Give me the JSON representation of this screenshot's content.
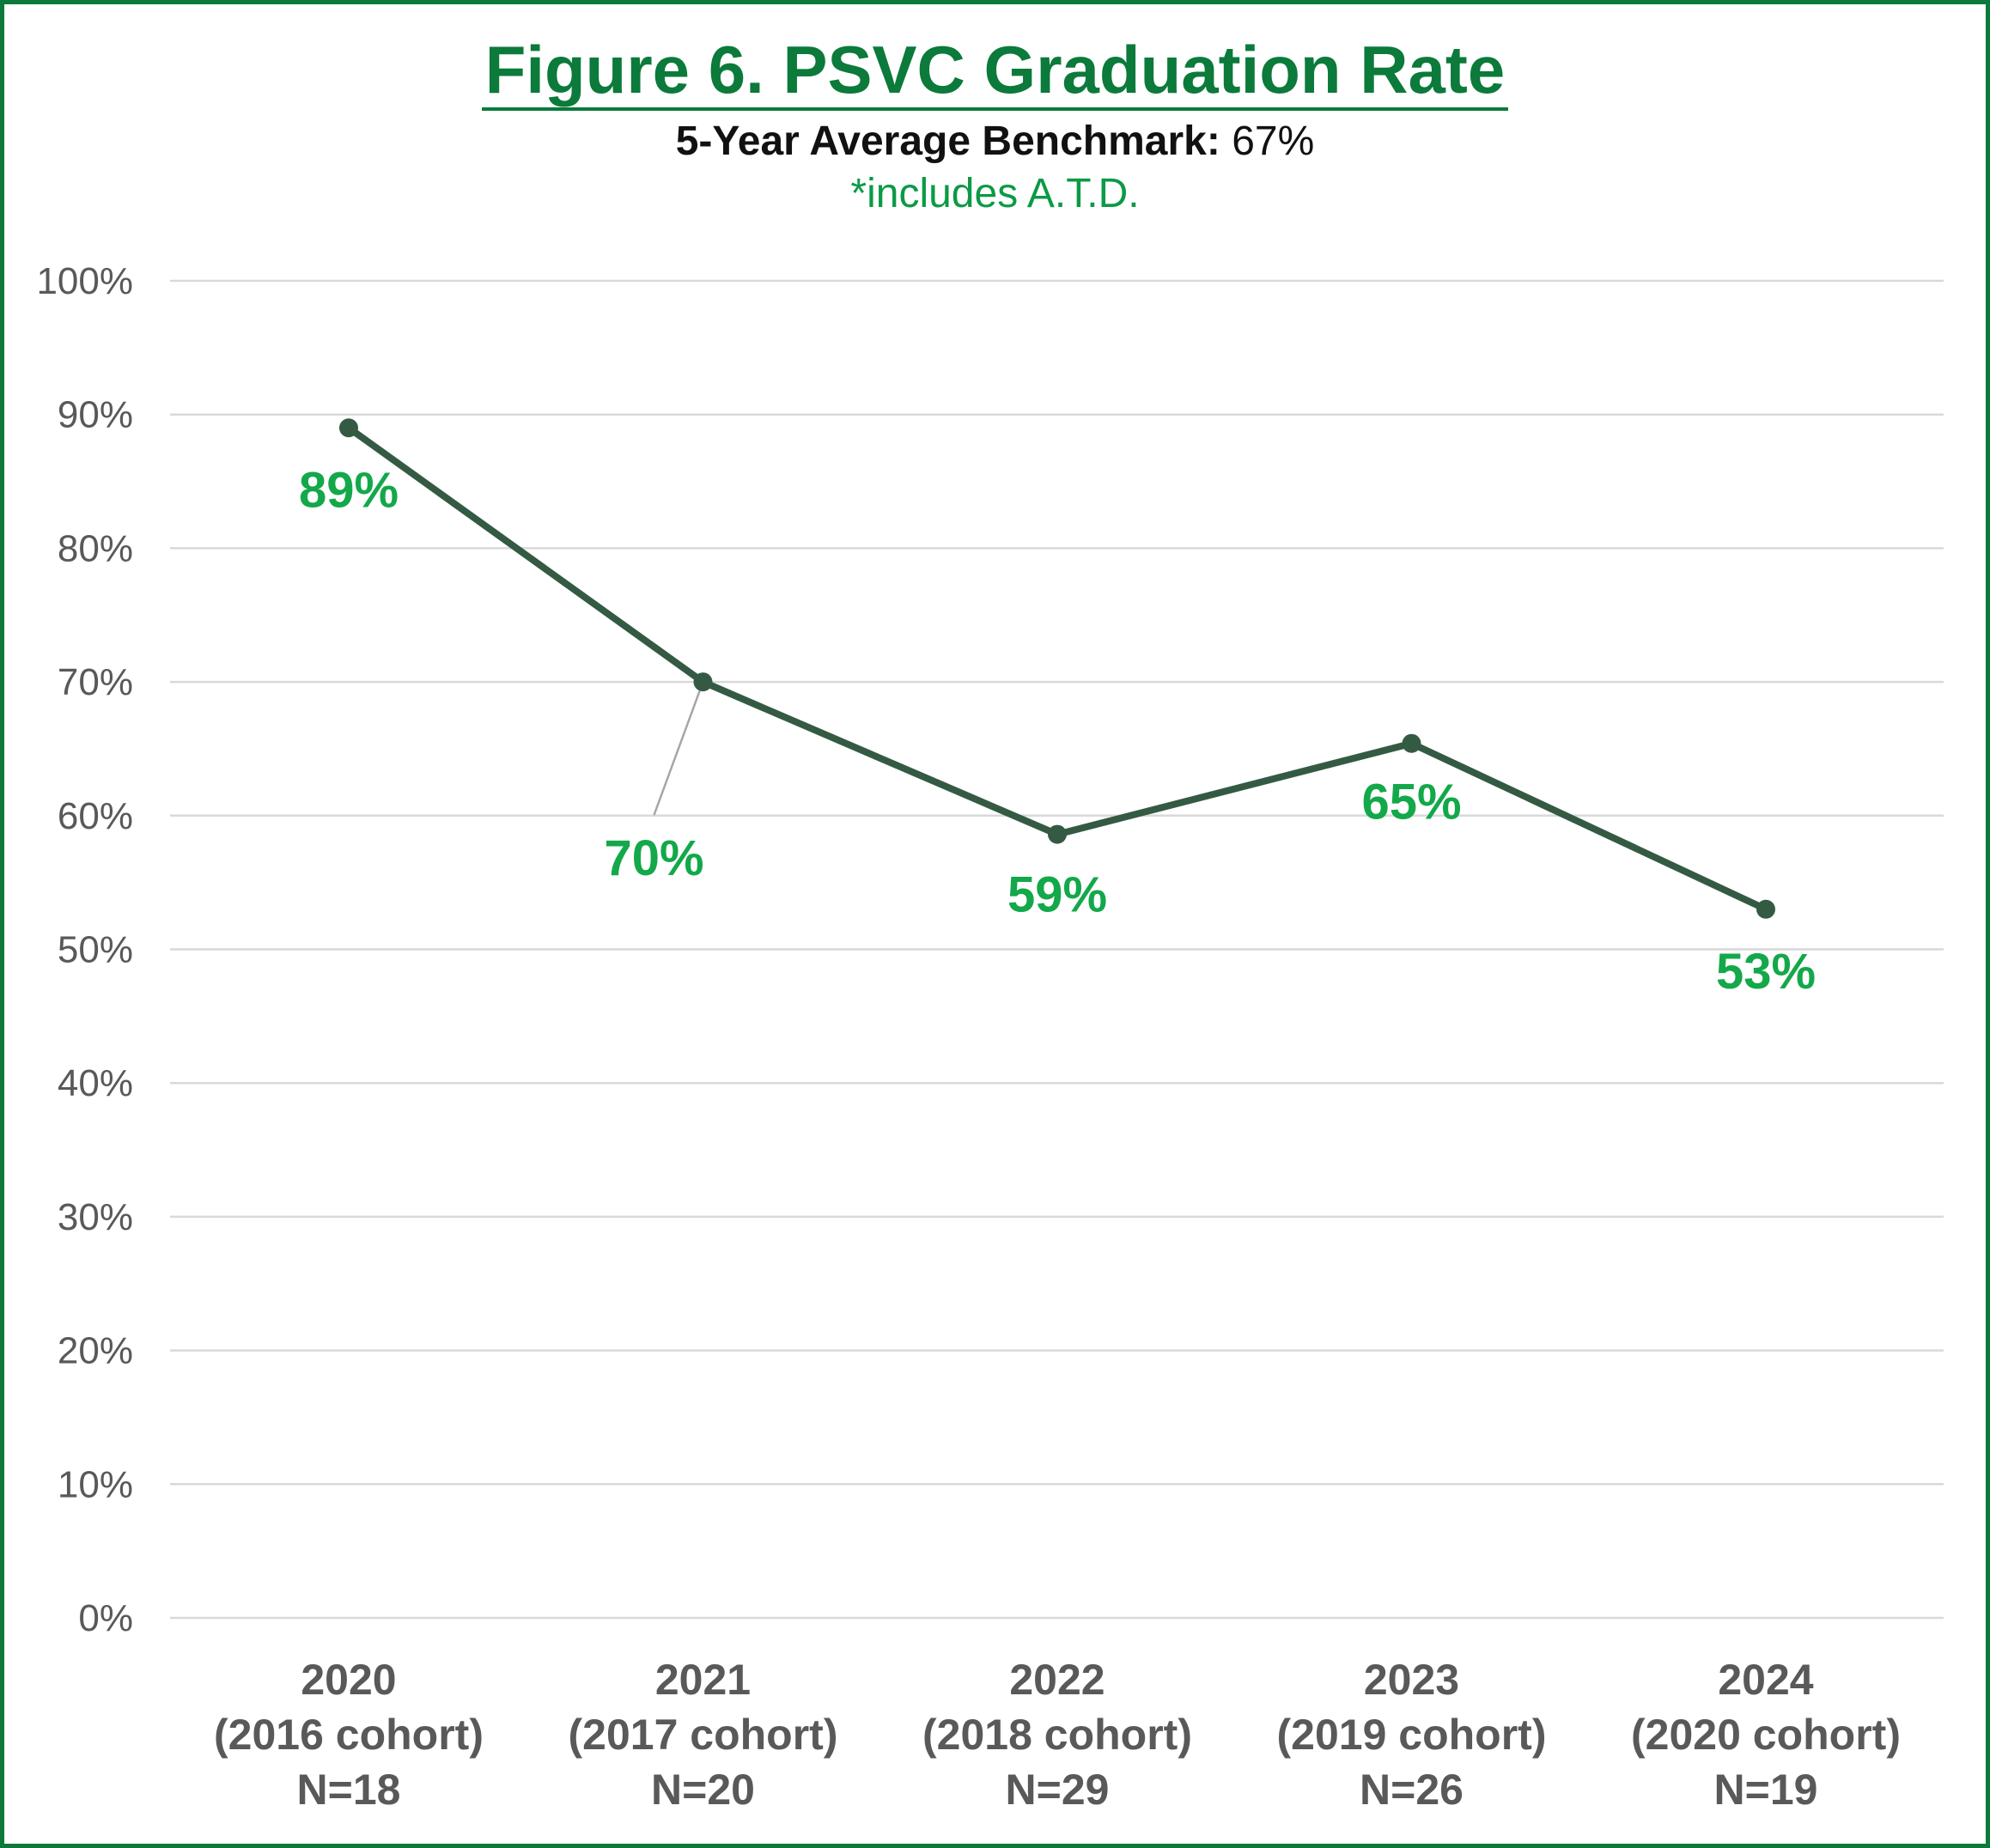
{
  "chart_data": {
    "type": "line",
    "title": "Figure 6. PSVC Graduation Rate",
    "subtitle_label": "5-Year Average Benchmark:",
    "subtitle_value": "67%",
    "note": "*includes A.T.D.",
    "categories": [
      [
        "2020",
        "(2016 cohort)",
        "N=18"
      ],
      [
        "2021",
        "(2017 cohort)",
        "N=20"
      ],
      [
        "2022",
        "(2018 cohort)",
        "N=29"
      ],
      [
        "2023",
        "(2019 cohort)",
        "N=26"
      ],
      [
        "2024",
        "(2020 cohort)",
        "N=19"
      ]
    ],
    "series": [
      {
        "values": [
          89,
          70,
          58.6,
          65.4,
          53
        ],
        "labels": [
          "89%",
          "70%",
          "59%",
          "65%",
          "53%"
        ]
      }
    ],
    "ylim": [
      0,
      100
    ],
    "yticks": [
      "0%",
      "10%",
      "20%",
      "30%",
      "40%",
      "50%",
      "60%",
      "70%",
      "80%",
      "90%",
      "100%"
    ],
    "grid": true,
    "colors": {
      "line": "#355a44",
      "labels": "#13a84a",
      "title": "#0b7a3a",
      "grid": "#d9d9d9",
      "axis_text": "#595959"
    }
  }
}
